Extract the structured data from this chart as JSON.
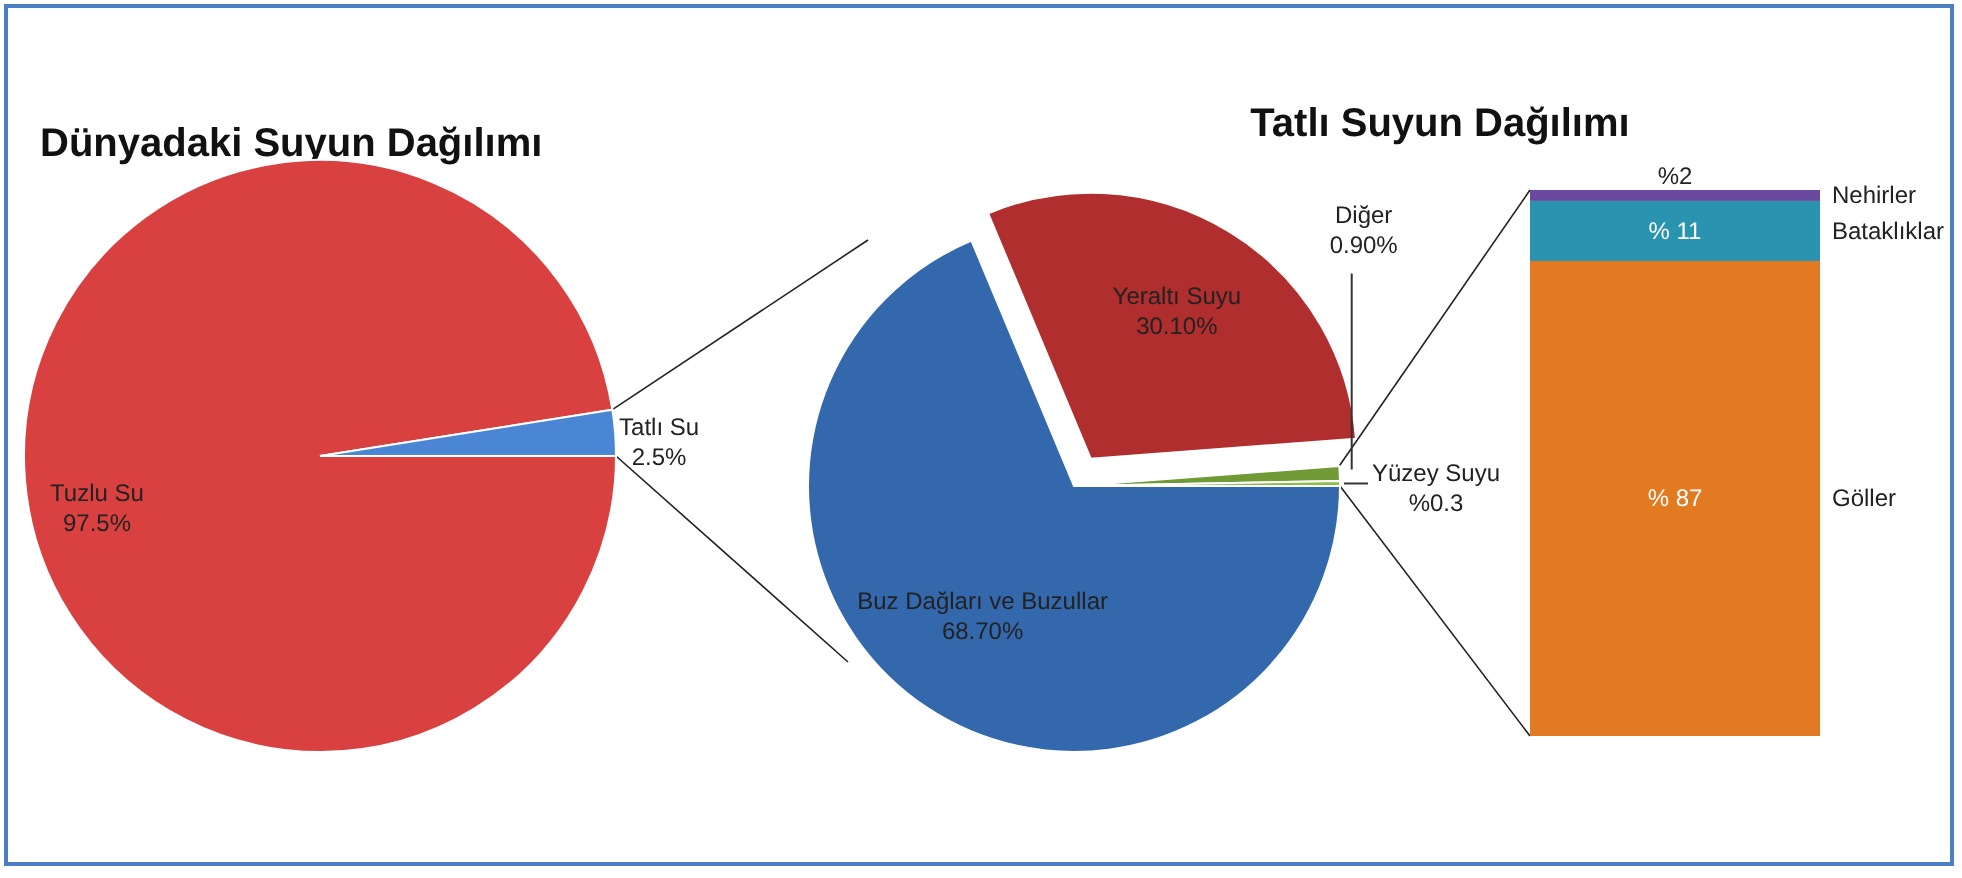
{
  "chart_data": [
    {
      "type": "pie",
      "title": "Dünyadaki Suyun Dağılımı",
      "categories": [
        "Tuzlu Su",
        "Tatlı Su"
      ],
      "values": [
        97.5,
        2.5
      ],
      "value_labels": [
        "97.5%",
        "2.5%"
      ],
      "colors": [
        "#d94040",
        "#4a86d4"
      ],
      "legend": false
    },
    {
      "type": "pie",
      "title": "Tatlı Suyun Dağılımı",
      "categories": [
        "Buz Dağları ve Buzullar",
        "Yeraltı Suyu",
        "Diğer",
        "Yüzey Suyu"
      ],
      "values": [
        68.7,
        30.1,
        0.9,
        0.3
      ],
      "value_labels": [
        "68.70%",
        "30.10%",
        "0.90%",
        "%0.3"
      ],
      "colors": [
        "#3468ad",
        "#b02e2e",
        "#6f9a36",
        "#8dbf45"
      ],
      "legend": false
    },
    {
      "type": "bar",
      "stacked": true,
      "categories": [
        null
      ],
      "legend": false,
      "series": [
        {
          "name": "Göller",
          "color": "#e27a22",
          "values": [
            87
          ],
          "value_labels": [
            "% 87"
          ]
        },
        {
          "name": "Bataklıklar",
          "color": "#2a94b0",
          "values": [
            11
          ],
          "value_labels": [
            "% 11"
          ]
        },
        {
          "name": "Nehirler",
          "color": "#6a4a9c",
          "values": [
            2
          ],
          "value_labels": [
            "%2"
          ]
        }
      ]
    }
  ]
}
